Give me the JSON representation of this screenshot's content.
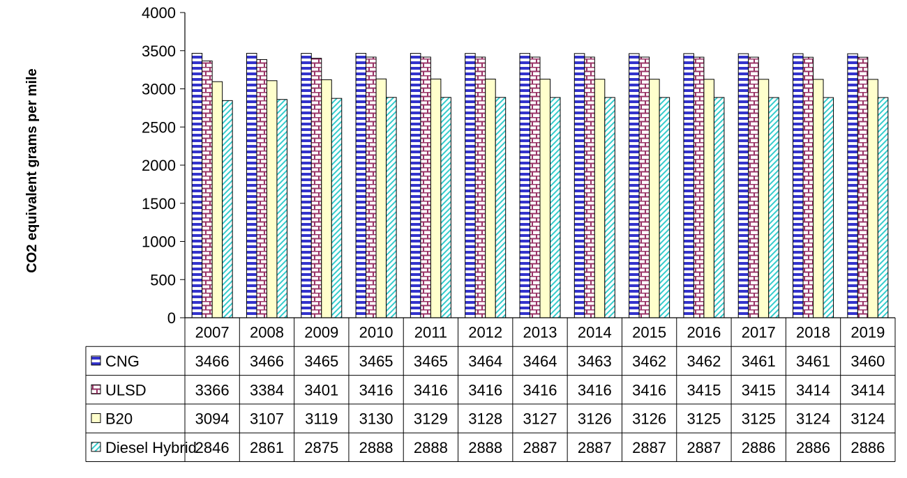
{
  "chart_data": {
    "type": "bar",
    "title": "",
    "xlabel": "",
    "ylabel": "CO2 equivalent grams per mile",
    "ylim": [
      0,
      4000
    ],
    "yticks": [
      "0",
      "500",
      "1000",
      "1500",
      "2000",
      "2500",
      "3000",
      "3500",
      "4000"
    ],
    "categories": [
      "2007",
      "2008",
      "2009",
      "2010",
      "2011",
      "2012",
      "2013",
      "2014",
      "2015",
      "2016",
      "2017",
      "2018",
      "2019"
    ],
    "series": [
      {
        "name": "CNG",
        "pattern": "hstripe",
        "color": "#3333cc",
        "values": [
          3466,
          3466,
          3465,
          3465,
          3465,
          3464,
          3464,
          3463,
          3462,
          3462,
          3461,
          3461,
          3460
        ]
      },
      {
        "name": "ULSD",
        "pattern": "brick",
        "color": "#993366",
        "values": [
          3366,
          3384,
          3401,
          3416,
          3416,
          3416,
          3416,
          3416,
          3416,
          3415,
          3415,
          3414,
          3414
        ]
      },
      {
        "name": "B20",
        "pattern": "solid",
        "color": "#ffffcc",
        "values": [
          3094,
          3107,
          3119,
          3130,
          3129,
          3128,
          3127,
          3126,
          3126,
          3125,
          3125,
          3124,
          3124
        ]
      },
      {
        "name": "Diesel Hybrid",
        "pattern": "diag",
        "color": "#33cccc",
        "values": [
          2846,
          2861,
          2875,
          2888,
          2888,
          2888,
          2887,
          2887,
          2887,
          2887,
          2886,
          2886,
          2886
        ]
      }
    ],
    "grid": false,
    "legend": "data-table"
  }
}
